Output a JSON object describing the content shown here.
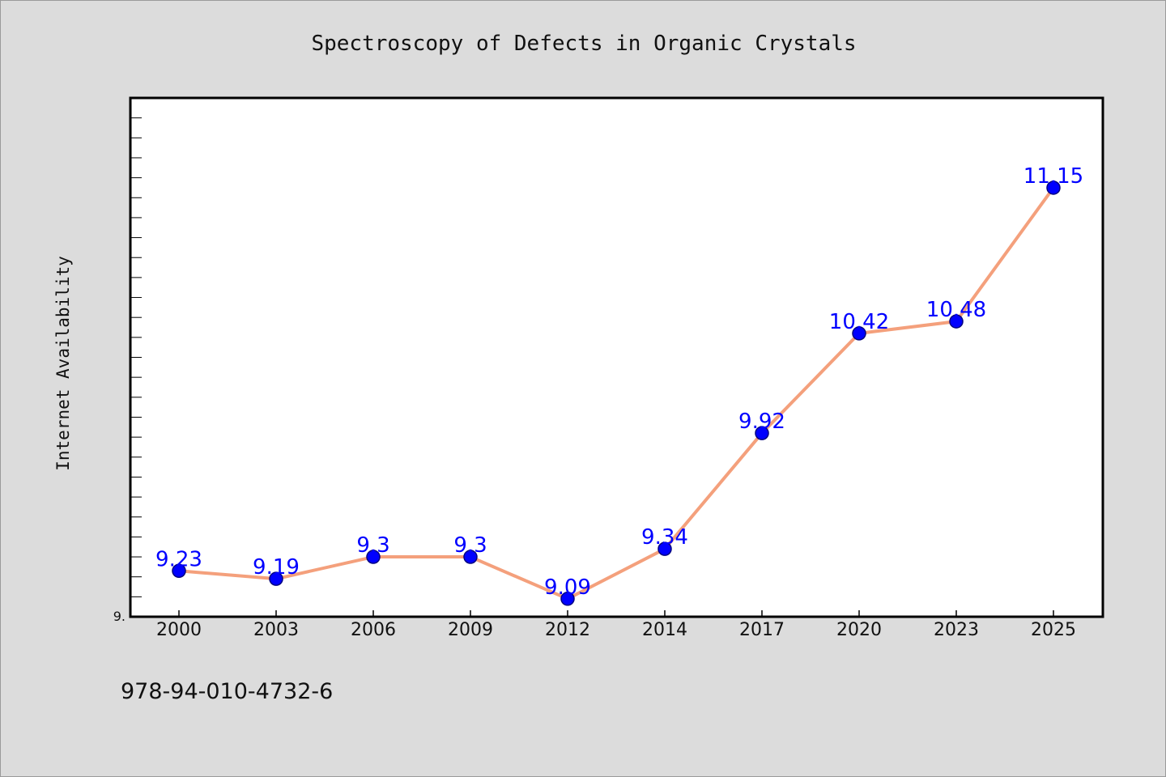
{
  "chart_data": {
    "type": "line",
    "title": "Spectroscopy of Defects in Organic Crystals",
    "xlabel": "",
    "ylabel": "Internet Availability",
    "categories": [
      "2000",
      "2003",
      "2006",
      "2009",
      "2012",
      "2014",
      "2017",
      "2020",
      "2023",
      "2025"
    ],
    "series": [
      {
        "values": [
          9.23,
          9.19,
          9.3,
          9.3,
          9.09,
          9.34,
          9.92,
          10.42,
          10.48,
          11.15
        ],
        "labels": [
          "9.23",
          "9.19",
          "9.3",
          "9.3",
          "9.09",
          "9.34",
          "9.92",
          "10.42",
          "10.48",
          "11.15"
        ]
      }
    ],
    "ylim": [
      9.0,
      11.6
    ],
    "y_minor_tick_step": 0.1,
    "y_tick_labels": [
      {
        "value": 9.0,
        "label": "9."
      }
    ],
    "grid": false,
    "legend": "none",
    "colors": {
      "line": "#f4a07c",
      "marker_fill": "#0000ff",
      "marker_edge": "#000080",
      "data_label": "#0000ff",
      "plot_background": "#ffffff",
      "figure_background": "#dcdcdc"
    }
  },
  "footer": {
    "isbn": "978-94-010-4732-6"
  }
}
